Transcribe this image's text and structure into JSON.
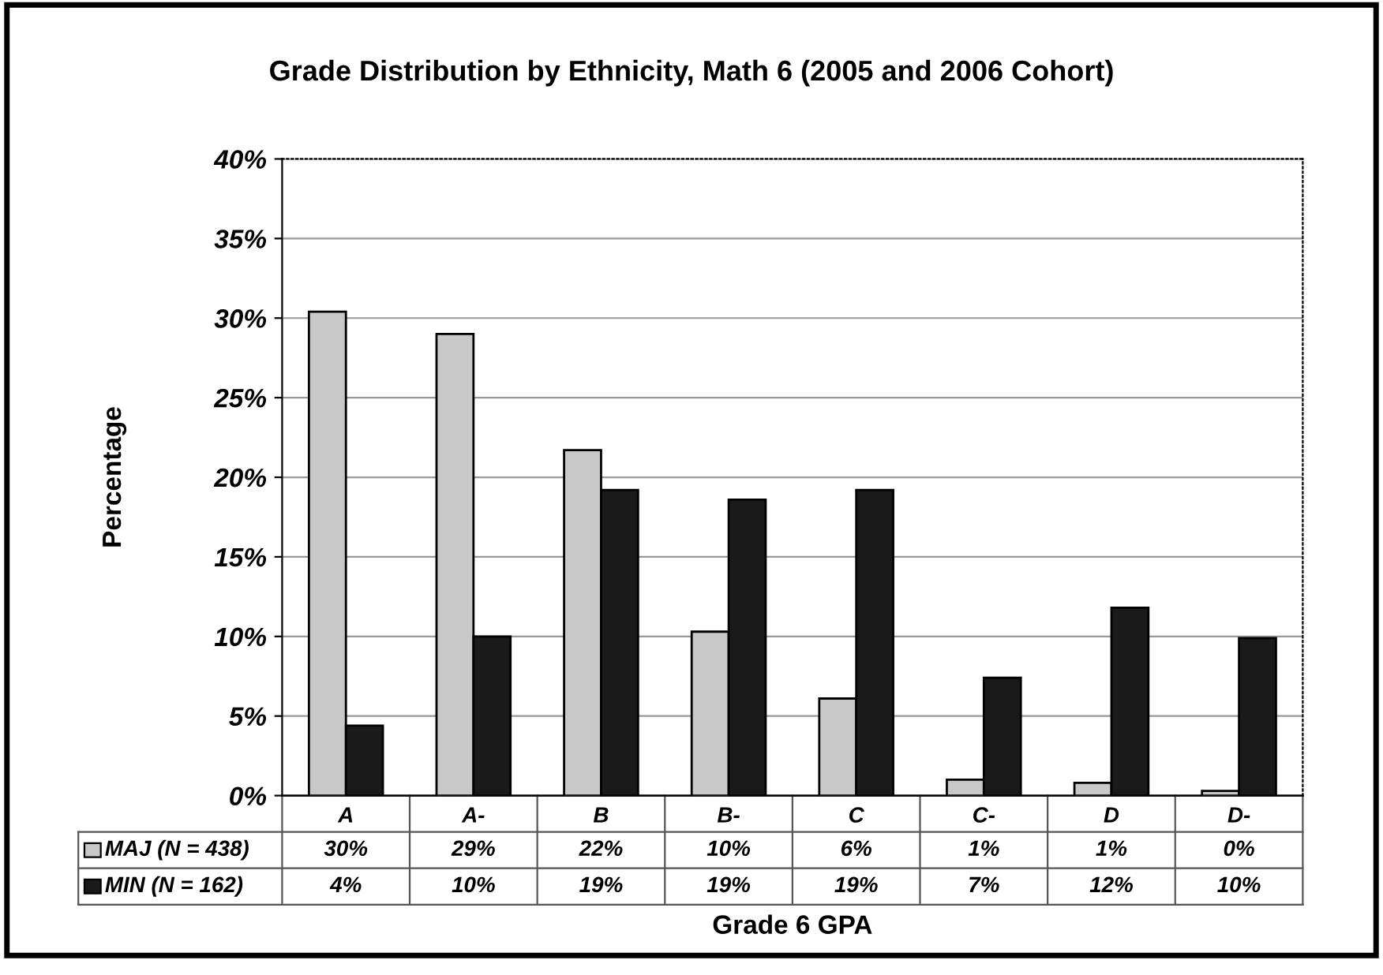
{
  "chart_data": {
    "type": "bar",
    "title": "Grade Distribution by Ethnicity, Math 6 (2005 and 2006 Cohort)",
    "xlabel": "Grade 6 GPA",
    "ylabel": "Percentage",
    "categories": [
      "A",
      "A-",
      "B",
      "B-",
      "C",
      "C-",
      "D",
      "D-"
    ],
    "series": [
      {
        "name": "MAJ (N = 438)",
        "color": "#c8c8c8",
        "values": [
          30.4,
          29.0,
          21.7,
          10.3,
          6.1,
          1.0,
          0.8,
          0.3
        ],
        "value_labels": [
          "30%",
          "29%",
          "22%",
          "10%",
          "6%",
          "1%",
          "1%",
          "0%"
        ]
      },
      {
        "name": "MIN (N = 162)",
        "color": "#1a1a1a",
        "values": [
          4.4,
          10.0,
          19.2,
          18.6,
          19.2,
          7.4,
          11.8,
          9.9
        ],
        "value_labels": [
          "4%",
          "10%",
          "19%",
          "19%",
          "19%",
          "7%",
          "12%",
          "10%"
        ]
      }
    ],
    "ylim": [
      0,
      40
    ],
    "yticks": [
      {
        "value": 0,
        "label": "0%"
      },
      {
        "value": 5,
        "label": "5%"
      },
      {
        "value": 10,
        "label": "10%"
      },
      {
        "value": 15,
        "label": "15%"
      },
      {
        "value": 20,
        "label": "20%"
      },
      {
        "value": 25,
        "label": "25%"
      },
      {
        "value": 30,
        "label": "30%"
      },
      {
        "value": 35,
        "label": "35%"
      },
      {
        "value": 40,
        "label": "40%"
      }
    ],
    "grid": "y",
    "legend": "bottom"
  }
}
